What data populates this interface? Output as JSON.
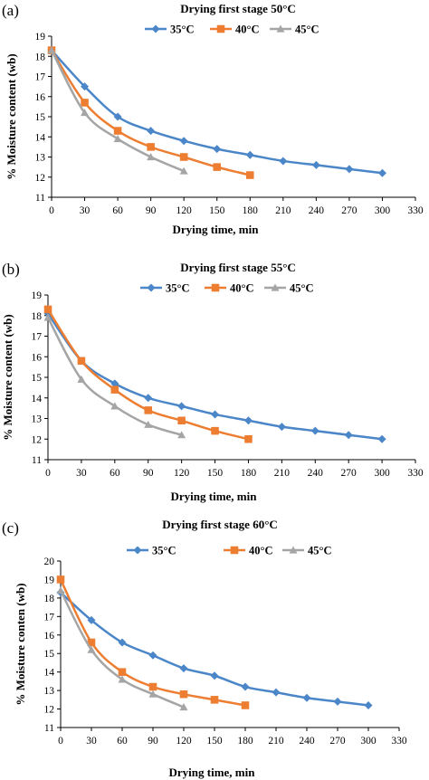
{
  "chart_data": [
    {
      "type": "line",
      "panel_label": "(a)",
      "title": "Drying first stage 50°C",
      "xlabel": "Drying time, min",
      "ylabel": "% Moisture content (wb)",
      "xlim": [
        0,
        330
      ],
      "ylim": [
        11,
        19
      ],
      "xticks": [
        0,
        30,
        60,
        90,
        120,
        150,
        180,
        210,
        240,
        270,
        300,
        330
      ],
      "yticks": [
        11,
        12,
        13,
        14,
        15,
        16,
        17,
        18,
        19
      ],
      "legend_position": "top",
      "grid": false,
      "series": [
        {
          "name": "35°C",
          "color": "#4a86c8",
          "marker": "diamond",
          "x": [
            0,
            30,
            60,
            90,
            120,
            150,
            180,
            210,
            240,
            270,
            300
          ],
          "values": [
            18.3,
            16.5,
            15.0,
            14.3,
            13.8,
            13.4,
            13.1,
            12.8,
            12.6,
            12.4,
            12.2
          ]
        },
        {
          "name": "40°C",
          "color": "#ed7d31",
          "marker": "square",
          "x": [
            0,
            30,
            60,
            90,
            120,
            150,
            180
          ],
          "values": [
            18.3,
            15.7,
            14.3,
            13.5,
            13.0,
            12.5,
            12.1
          ]
        },
        {
          "name": "45°C",
          "color": "#a5a5a5",
          "marker": "triangle",
          "x": [
            0,
            30,
            60,
            90,
            120
          ],
          "values": [
            18.3,
            15.2,
            13.9,
            13.0,
            12.3
          ]
        }
      ]
    },
    {
      "type": "line",
      "panel_label": "(b)",
      "title": "Drying first stage 55°C",
      "xlabel": "Drying time, min",
      "ylabel": "% Moisture content (wb)",
      "xlim": [
        0,
        330
      ],
      "ylim": [
        11,
        19
      ],
      "xticks": [
        0,
        30,
        60,
        90,
        120,
        150,
        180,
        210,
        240,
        270,
        300,
        330
      ],
      "yticks": [
        11,
        12,
        13,
        14,
        15,
        16,
        17,
        18,
        19
      ],
      "legend_position": "top",
      "grid": false,
      "series": [
        {
          "name": "35°C",
          "color": "#4a86c8",
          "marker": "diamond",
          "x": [
            0,
            30,
            60,
            90,
            120,
            150,
            180,
            210,
            240,
            270,
            300
          ],
          "values": [
            18.1,
            15.8,
            14.7,
            14.0,
            13.6,
            13.2,
            12.9,
            12.6,
            12.4,
            12.2,
            12.0
          ]
        },
        {
          "name": "40°C",
          "color": "#ed7d31",
          "marker": "square",
          "x": [
            0,
            30,
            60,
            90,
            120,
            150,
            180
          ],
          "values": [
            18.3,
            15.8,
            14.4,
            13.4,
            12.9,
            12.4,
            12.0
          ]
        },
        {
          "name": "45°C",
          "color": "#a5a5a5",
          "marker": "triangle",
          "x": [
            0,
            30,
            60,
            90,
            120
          ],
          "values": [
            17.9,
            14.9,
            13.6,
            12.7,
            12.2
          ]
        }
      ]
    },
    {
      "type": "line",
      "panel_label": "(c)",
      "title": "Drying  first stage 60°C",
      "xlabel": "Drying time, min",
      "ylabel": "% Moisture conten (wb)",
      "xlim": [
        0,
        330
      ],
      "ylim": [
        11,
        20
      ],
      "xticks": [
        0,
        30,
        60,
        90,
        120,
        150,
        180,
        210,
        240,
        270,
        300,
        330
      ],
      "yticks": [
        11,
        12,
        13,
        14,
        15,
        16,
        17,
        18,
        19,
        20
      ],
      "legend_position": "top",
      "grid": false,
      "series": [
        {
          "name": "35°C",
          "color": "#4a86c8",
          "marker": "diamond",
          "x": [
            0,
            30,
            60,
            90,
            120,
            150,
            180,
            210,
            240,
            270,
            300
          ],
          "values": [
            18.3,
            16.8,
            15.6,
            14.9,
            14.2,
            13.8,
            13.2,
            12.9,
            12.6,
            12.4,
            12.2
          ]
        },
        {
          "name": "40°C",
          "color": "#ed7d31",
          "marker": "square",
          "x": [
            0,
            30,
            60,
            90,
            120,
            150,
            180
          ],
          "values": [
            19.0,
            15.6,
            14.0,
            13.2,
            12.8,
            12.5,
            12.2
          ]
        },
        {
          "name": "45°C",
          "color": "#a5a5a5",
          "marker": "triangle",
          "x": [
            0,
            30,
            60,
            90,
            120
          ],
          "values": [
            18.4,
            15.2,
            13.6,
            12.8,
            12.1
          ]
        }
      ]
    }
  ]
}
